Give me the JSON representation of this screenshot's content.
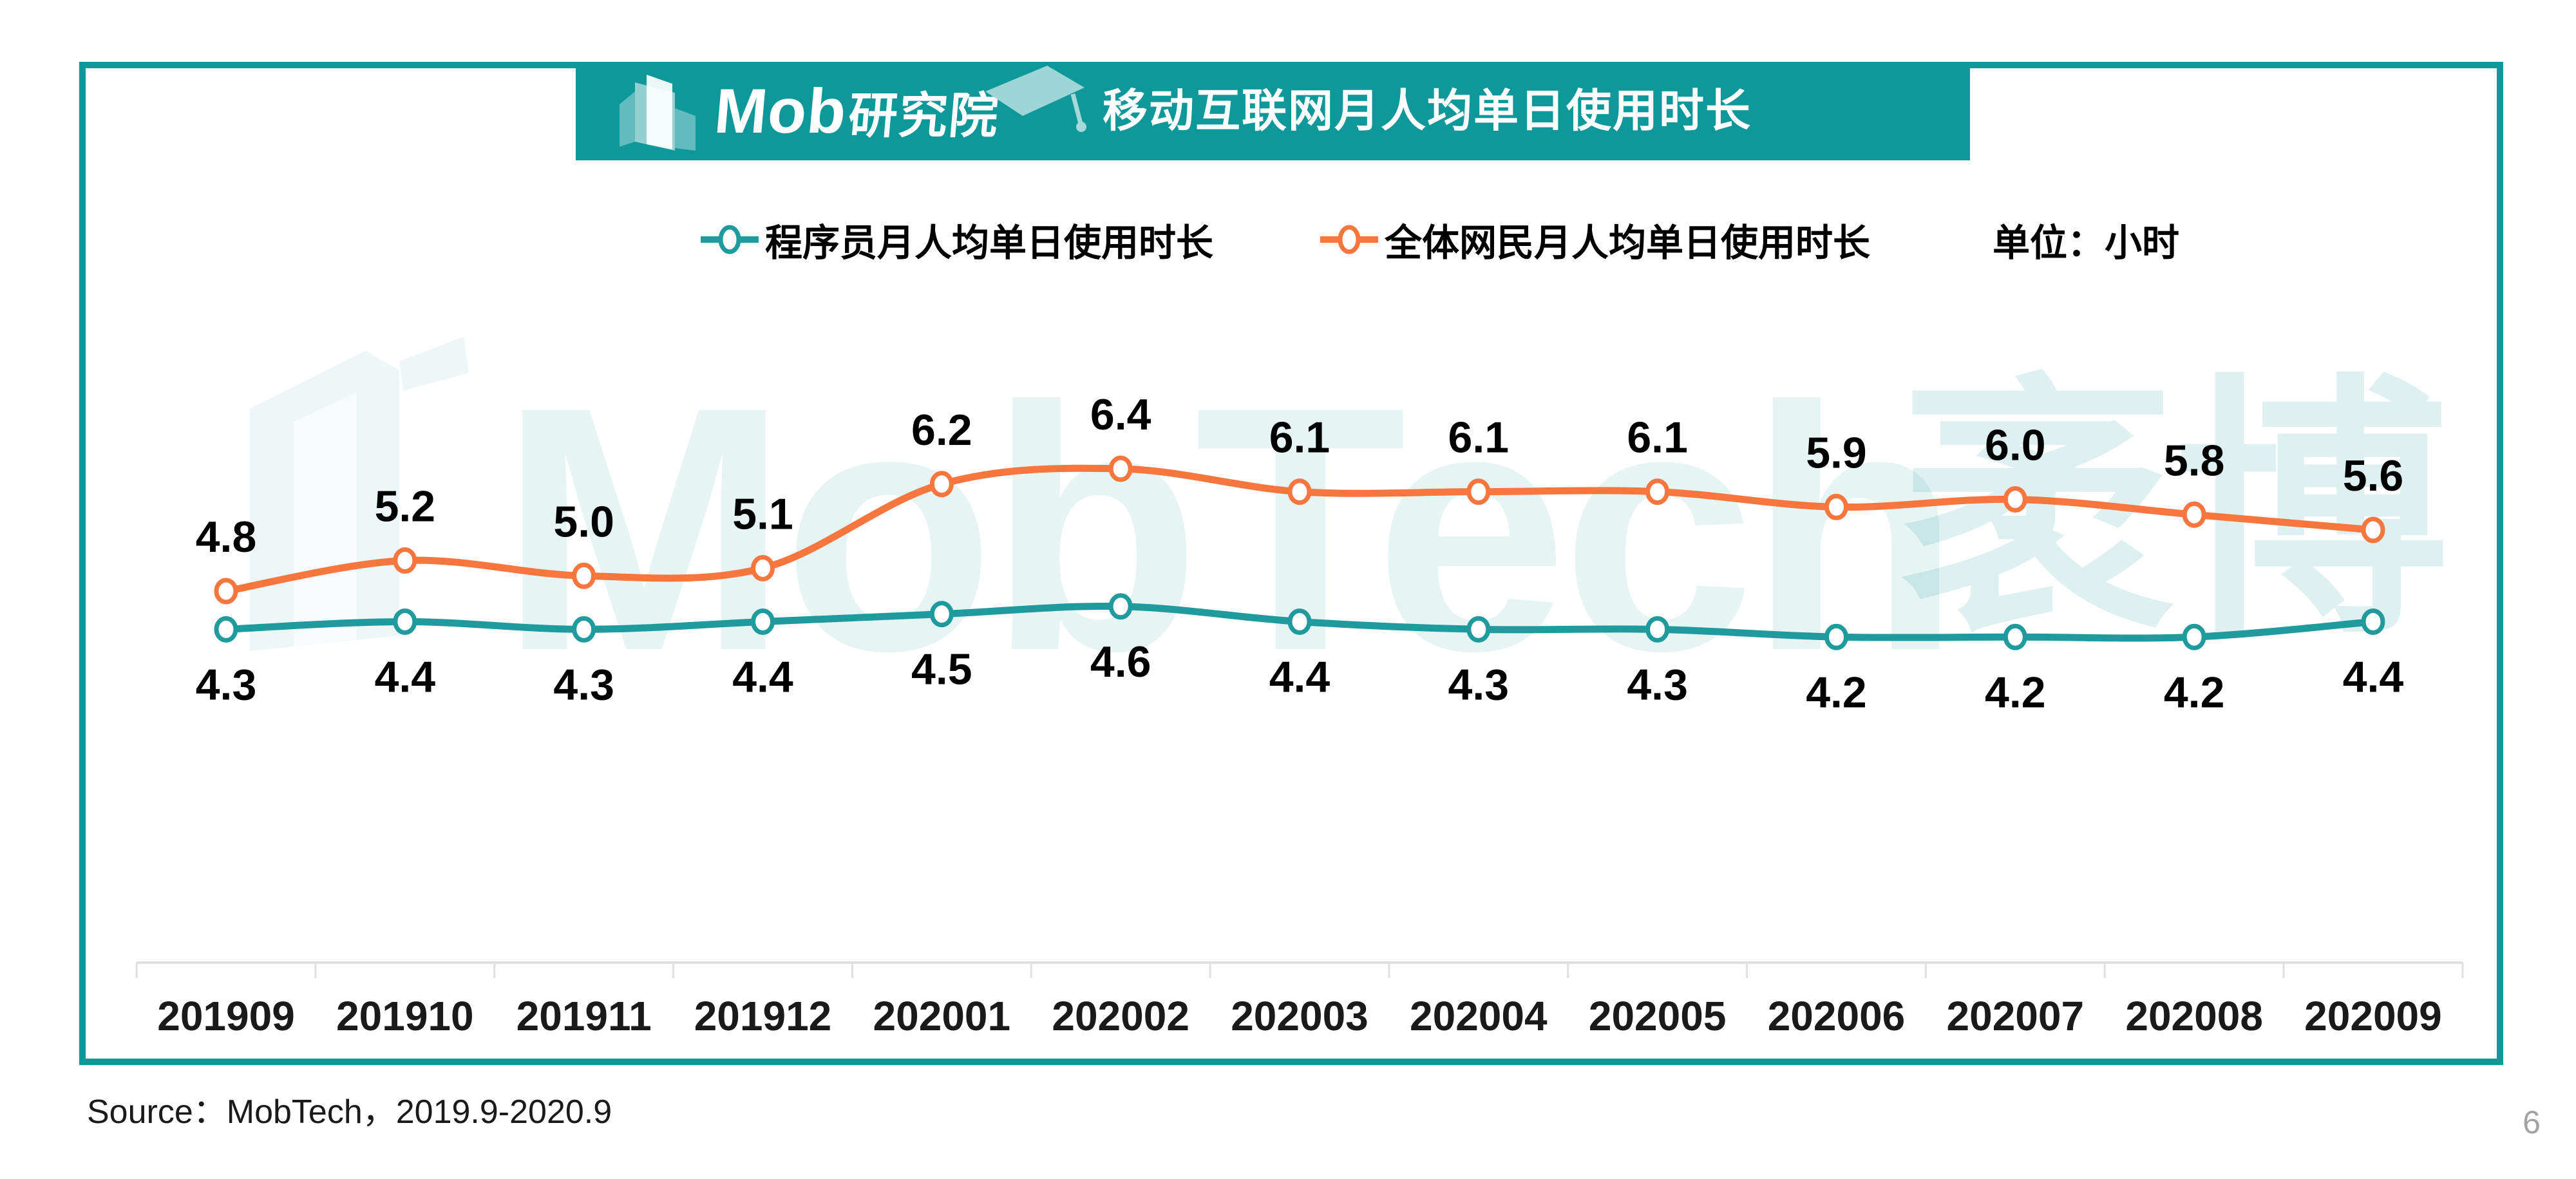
{
  "colors": {
    "brand_teal": "#0E989A",
    "series_programmer": "#1F9B9D",
    "series_netizens": "#F7763E",
    "marker_fill": "#FFFFFF",
    "axis_line": "#E0E0E0",
    "data_label_text": "#000000",
    "axis_label_text": "#1A1A1A",
    "banner_text": "#FFFFFF",
    "watermark_tint": "#169698",
    "source_text": "#1A1A1A",
    "page_number_text": "#A3A3A3"
  },
  "header": {
    "logo_latin": "Mob",
    "logo_cn": "研究院",
    "title": "移动互联网月人均单日使用时长"
  },
  "legend": {
    "items": [
      {
        "label": "程序员月人均单日使用时长",
        "color": "#1F9B9D"
      },
      {
        "label": "全体网民月人均单日使用时长",
        "color": "#F7763E"
      }
    ],
    "unit_label": "单位：小时"
  },
  "watermark": {
    "latin": "MobTech",
    "cn": "袤博"
  },
  "footer": {
    "source": "Source：MobTech，2019.9-2020.9",
    "page_number": "6"
  },
  "chart_data": {
    "type": "line",
    "title": "移动互联网月人均单日使用时长",
    "unit": "小时",
    "categories": [
      "201909",
      "201910",
      "201911",
      "201912",
      "202001",
      "202002",
      "202003",
      "202004",
      "202005",
      "202006",
      "202007",
      "202008",
      "202009"
    ],
    "series": [
      {
        "name": "程序员月人均单日使用时长",
        "color": "#1F9B9D",
        "values": [
          4.3,
          4.4,
          4.3,
          4.4,
          4.5,
          4.6,
          4.4,
          4.3,
          4.3,
          4.2,
          4.2,
          4.2,
          4.4
        ],
        "label_position": "below"
      },
      {
        "name": "全体网民月人均单日使用时长",
        "color": "#F7763E",
        "values": [
          4.8,
          5.2,
          5.0,
          5.1,
          6.2,
          6.4,
          6.1,
          6.1,
          6.1,
          5.9,
          6.0,
          5.8,
          5.6
        ],
        "label_position": "above"
      }
    ],
    "value_format": "one_decimal",
    "smooth": true,
    "markers": "open-circle",
    "grid": false,
    "y_axis_visible": false,
    "y_range_implied": [
      4.0,
      6.6
    ],
    "x_axis": {
      "position": "bottom",
      "tick_style": "between-categories"
    },
    "legend_position": "top"
  }
}
